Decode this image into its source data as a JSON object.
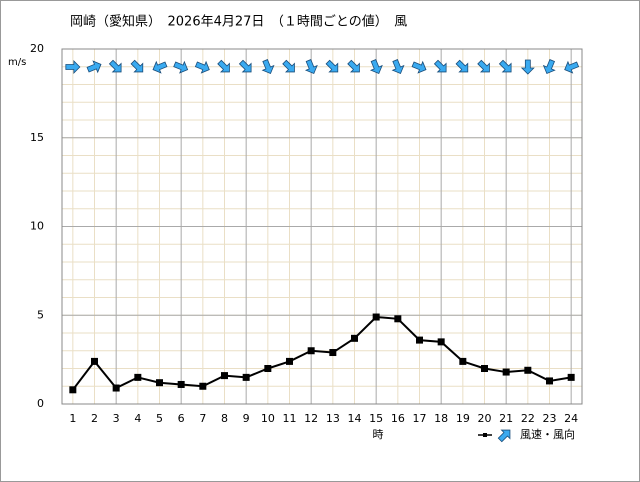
{
  "chart_data": {
    "type": "line",
    "title": "岡崎（愛知県）　2026年4月27日　（１時間ごとの値）　風",
    "y_label": "m/s",
    "x_label": "時",
    "legend_label": "風速・風向",
    "categories": [
      "1",
      "2",
      "3",
      "4",
      "5",
      "6",
      "7",
      "8",
      "9",
      "10",
      "11",
      "12",
      "13",
      "14",
      "15",
      "16",
      "17",
      "18",
      "19",
      "20",
      "21",
      "22",
      "23",
      "24"
    ],
    "series": [
      {
        "name": "風速",
        "color": "#000000",
        "values": [
          0.8,
          2.4,
          0.9,
          1.5,
          1.2,
          1.1,
          1.0,
          1.6,
          1.5,
          2.0,
          2.4,
          3.0,
          2.9,
          3.7,
          4.9,
          4.8,
          3.6,
          3.5,
          2.4,
          2.0,
          1.8,
          1.9,
          1.3,
          1.5
        ]
      }
    ],
    "wind_arrow_degrees": [
      90,
      67.5,
      135,
      135,
      247.5,
      112.5,
      112.5,
      135,
      135,
      157.5,
      135,
      157.5,
      135,
      135,
      157.5,
      157.5,
      112.5,
      135,
      135,
      135,
      135,
      180,
      202.5,
      247.5
    ],
    "arrow_color": "#3aaaf0",
    "ylim": [
      0,
      20
    ],
    "yticks": [
      0,
      5,
      10,
      15,
      20
    ],
    "grid": true
  }
}
